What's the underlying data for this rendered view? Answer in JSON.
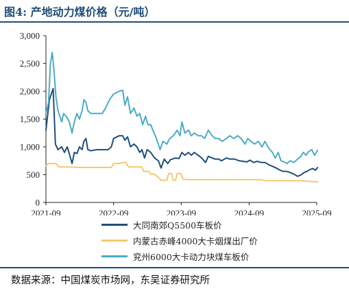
{
  "header": {
    "title": "图4:  产地动力煤价格（元/吨）"
  },
  "footer": {
    "source": "数据来源：中国煤炭市场网，东吴证券研究所"
  },
  "chart_data": {
    "type": "line",
    "title": "产地动力煤价格（元/吨）",
    "xlabel": "",
    "ylabel": "",
    "ylim": [
      0,
      3000
    ],
    "yticks": [
      "0",
      "500",
      "1,000",
      "1,500",
      "2,000",
      "2,500",
      "3,000"
    ],
    "ytick_values": [
      0,
      500,
      1000,
      1500,
      2000,
      2500,
      3000
    ],
    "xlim": [
      "2021-09",
      "2025-09"
    ],
    "xticks": [
      "2021-09",
      "2022-09",
      "2023-09",
      "2024-09",
      "2025-09"
    ],
    "grid": false,
    "legend_position": "bottom",
    "series": [
      {
        "name": "大同南郊Q5500车板价",
        "color": "#1f4e79",
        "points": [
          [
            "2021-09-01",
            1300
          ],
          [
            "2021-09-20",
            1850
          ],
          [
            "2021-10-10",
            2050
          ],
          [
            "2021-10-22",
            1050
          ],
          [
            "2021-11-05",
            950
          ],
          [
            "2021-11-25",
            1000
          ],
          [
            "2021-12-10",
            900
          ],
          [
            "2021-12-25",
            1000
          ],
          [
            "2022-01-10",
            820
          ],
          [
            "2022-01-20",
            700
          ],
          [
            "2022-02-01",
            900
          ],
          [
            "2022-02-15",
            880
          ],
          [
            "2022-03-01",
            1000
          ],
          [
            "2022-03-15",
            950
          ],
          [
            "2022-03-25",
            1100
          ],
          [
            "2022-04-05",
            1150
          ],
          [
            "2022-04-15",
            950
          ],
          [
            "2022-05-01",
            930
          ],
          [
            "2022-06-01",
            950
          ],
          [
            "2022-07-01",
            950
          ],
          [
            "2022-08-01",
            950
          ],
          [
            "2022-08-20",
            1000
          ],
          [
            "2022-09-01",
            1150
          ],
          [
            "2022-10-01",
            1200
          ],
          [
            "2022-10-20",
            1200
          ],
          [
            "2022-11-01",
            1120
          ],
          [
            "2022-11-15",
            1180
          ],
          [
            "2022-12-01",
            1000
          ],
          [
            "2022-12-20",
            1050
          ],
          [
            "2023-01-05",
            1000
          ],
          [
            "2023-01-20",
            900
          ],
          [
            "2023-02-01",
            950
          ],
          [
            "2023-02-15",
            800
          ],
          [
            "2023-03-01",
            950
          ],
          [
            "2023-03-20",
            900
          ],
          [
            "2023-04-10",
            800
          ],
          [
            "2023-05-01",
            750
          ],
          [
            "2023-05-15",
            620
          ],
          [
            "2023-06-01",
            780
          ],
          [
            "2023-06-20",
            700
          ],
          [
            "2023-07-05",
            770
          ],
          [
            "2023-08-01",
            800
          ],
          [
            "2023-08-20",
            790
          ],
          [
            "2023-09-05",
            900
          ],
          [
            "2023-09-20",
            850
          ],
          [
            "2023-10-10",
            900
          ],
          [
            "2023-10-25",
            850
          ],
          [
            "2023-11-10",
            900
          ],
          [
            "2023-12-01",
            850
          ],
          [
            "2023-12-20",
            800
          ],
          [
            "2024-01-10",
            720
          ],
          [
            "2024-01-25",
            830
          ],
          [
            "2024-02-15",
            800
          ],
          [
            "2024-03-01",
            780
          ],
          [
            "2024-03-20",
            780
          ],
          [
            "2024-04-05",
            750
          ],
          [
            "2024-05-01",
            800
          ],
          [
            "2024-05-20",
            780
          ],
          [
            "2024-06-15",
            780
          ],
          [
            "2024-07-10",
            750
          ],
          [
            "2024-08-01",
            740
          ],
          [
            "2024-08-20",
            730
          ],
          [
            "2024-09-05",
            760
          ],
          [
            "2024-09-25",
            720
          ],
          [
            "2024-10-15",
            740
          ],
          [
            "2024-11-05",
            720
          ],
          [
            "2024-11-25",
            720
          ],
          [
            "2024-12-15",
            680
          ],
          [
            "2025-01-05",
            650
          ],
          [
            "2025-01-25",
            620
          ],
          [
            "2025-02-15",
            580
          ],
          [
            "2025-03-01",
            560
          ],
          [
            "2025-03-20",
            560
          ],
          [
            "2025-04-10",
            540
          ],
          [
            "2025-05-01",
            510
          ],
          [
            "2025-05-20",
            470
          ],
          [
            "2025-06-10",
            500
          ],
          [
            "2025-06-25",
            540
          ],
          [
            "2025-07-10",
            560
          ],
          [
            "2025-07-25",
            590
          ],
          [
            "2025-08-10",
            610
          ],
          [
            "2025-08-25",
            580
          ],
          [
            "2025-09-05",
            630
          ]
        ]
      },
      {
        "name": "内蒙古赤峰4000大卡烟煤出厂价",
        "color": "#f5c96b",
        "points": [
          [
            "2021-09-01",
            660
          ],
          [
            "2021-09-15",
            700
          ],
          [
            "2021-10-10",
            700
          ],
          [
            "2021-10-25",
            700
          ],
          [
            "2021-11-10",
            640
          ],
          [
            "2021-11-25",
            640
          ],
          [
            "2022-01-01",
            640
          ],
          [
            "2022-03-01",
            630
          ],
          [
            "2022-05-01",
            630
          ],
          [
            "2022-07-01",
            630
          ],
          [
            "2022-08-20",
            630
          ],
          [
            "2022-09-01",
            700
          ],
          [
            "2022-10-01",
            700
          ],
          [
            "2022-10-20",
            720
          ],
          [
            "2022-11-05",
            720
          ],
          [
            "2022-11-20",
            640
          ],
          [
            "2022-12-10",
            640
          ],
          [
            "2023-01-01",
            640
          ],
          [
            "2023-02-01",
            640
          ],
          [
            "2023-02-10",
            560
          ],
          [
            "2023-03-10",
            560
          ],
          [
            "2023-03-20",
            510
          ],
          [
            "2023-04-10",
            510
          ],
          [
            "2023-05-01",
            450
          ],
          [
            "2023-05-15",
            400
          ],
          [
            "2023-06-15",
            400
          ],
          [
            "2023-06-25",
            520
          ],
          [
            "2023-07-10",
            520
          ],
          [
            "2023-07-20",
            400
          ],
          [
            "2023-08-01",
            400
          ],
          [
            "2023-08-10",
            520
          ],
          [
            "2023-08-30",
            520
          ],
          [
            "2023-09-10",
            420
          ],
          [
            "2023-10-01",
            410
          ],
          [
            "2023-12-01",
            410
          ],
          [
            "2024-03-01",
            410
          ],
          [
            "2024-06-01",
            410
          ],
          [
            "2024-09-01",
            410
          ],
          [
            "2024-11-01",
            410
          ],
          [
            "2024-12-01",
            390
          ],
          [
            "2025-03-01",
            390
          ],
          [
            "2025-06-01",
            390
          ],
          [
            "2025-09-05",
            370
          ]
        ]
      },
      {
        "name": "兖州6000大卡动力块煤车板价",
        "color": "#4aacc6",
        "points": [
          [
            "2021-09-01",
            1600
          ],
          [
            "2021-09-15",
            1800
          ],
          [
            "2021-09-25",
            2500
          ],
          [
            "2021-10-05",
            2700
          ],
          [
            "2021-10-15",
            2350
          ],
          [
            "2021-10-25",
            1900
          ],
          [
            "2021-11-05",
            1650
          ],
          [
            "2021-11-15",
            1550
          ],
          [
            "2021-11-25",
            1450
          ],
          [
            "2021-12-05",
            1600
          ],
          [
            "2021-12-20",
            1550
          ],
          [
            "2022-01-05",
            1450
          ],
          [
            "2022-01-20",
            1250
          ],
          [
            "2022-02-01",
            1450
          ],
          [
            "2022-02-15",
            1600
          ],
          [
            "2022-03-01",
            1500
          ],
          [
            "2022-03-15",
            1650
          ],
          [
            "2022-03-25",
            1850
          ],
          [
            "2022-04-05",
            1800
          ],
          [
            "2022-04-15",
            1650
          ],
          [
            "2022-05-01",
            1600
          ],
          [
            "2022-06-01",
            1600
          ],
          [
            "2022-07-01",
            1600
          ],
          [
            "2022-07-20",
            1700
          ],
          [
            "2022-08-10",
            1850
          ],
          [
            "2022-09-01",
            1950
          ],
          [
            "2022-10-01",
            2000
          ],
          [
            "2022-10-20",
            2020
          ],
          [
            "2022-11-01",
            1750
          ],
          [
            "2022-11-15",
            1900
          ],
          [
            "2022-12-01",
            1600
          ],
          [
            "2022-12-20",
            1700
          ],
          [
            "2023-01-05",
            1550
          ],
          [
            "2023-01-20",
            1600
          ],
          [
            "2023-02-05",
            1400
          ],
          [
            "2023-02-20",
            1550
          ],
          [
            "2023-03-05",
            1400
          ],
          [
            "2023-03-20",
            1400
          ],
          [
            "2023-04-01",
            1300
          ],
          [
            "2023-04-20",
            1150
          ],
          [
            "2023-05-10",
            950
          ],
          [
            "2023-05-25",
            1100
          ],
          [
            "2023-06-15",
            1050
          ],
          [
            "2023-07-01",
            1150
          ],
          [
            "2023-07-20",
            1200
          ],
          [
            "2023-08-10",
            1300
          ],
          [
            "2023-08-25",
            1200
          ],
          [
            "2023-09-05",
            1450
          ],
          [
            "2023-09-20",
            1250
          ],
          [
            "2023-10-10",
            1300
          ],
          [
            "2023-10-25",
            1200
          ],
          [
            "2023-11-10",
            1250
          ],
          [
            "2023-12-01",
            1200
          ],
          [
            "2023-12-20",
            1200
          ],
          [
            "2024-01-05",
            1150
          ],
          [
            "2024-01-25",
            1300
          ],
          [
            "2024-02-15",
            1200
          ],
          [
            "2024-03-01",
            1150
          ],
          [
            "2024-03-20",
            1150
          ],
          [
            "2024-04-10",
            1100
          ],
          [
            "2024-05-01",
            1150
          ],
          [
            "2024-05-20",
            1200
          ],
          [
            "2024-06-10",
            1150
          ],
          [
            "2024-07-01",
            1200
          ],
          [
            "2024-07-20",
            1150
          ],
          [
            "2024-08-10",
            1050
          ],
          [
            "2024-08-25",
            1150
          ],
          [
            "2024-09-10",
            1100
          ],
          [
            "2024-10-01",
            1050
          ],
          [
            "2024-10-20",
            1100
          ],
          [
            "2024-11-10",
            1000
          ],
          [
            "2024-11-25",
            1100
          ],
          [
            "2024-12-15",
            980
          ],
          [
            "2025-01-05",
            900
          ],
          [
            "2025-01-20",
            800
          ],
          [
            "2025-02-05",
            900
          ],
          [
            "2025-02-20",
            750
          ],
          [
            "2025-03-10",
            730
          ],
          [
            "2025-03-25",
            700
          ],
          [
            "2025-04-10",
            750
          ],
          [
            "2025-05-01",
            720
          ],
          [
            "2025-05-20",
            780
          ],
          [
            "2025-06-05",
            820
          ],
          [
            "2025-06-20",
            900
          ],
          [
            "2025-07-05",
            850
          ],
          [
            "2025-07-20",
            920
          ],
          [
            "2025-08-05",
            950
          ],
          [
            "2025-08-20",
            850
          ],
          [
            "2025-09-05",
            940
          ]
        ]
      }
    ]
  }
}
